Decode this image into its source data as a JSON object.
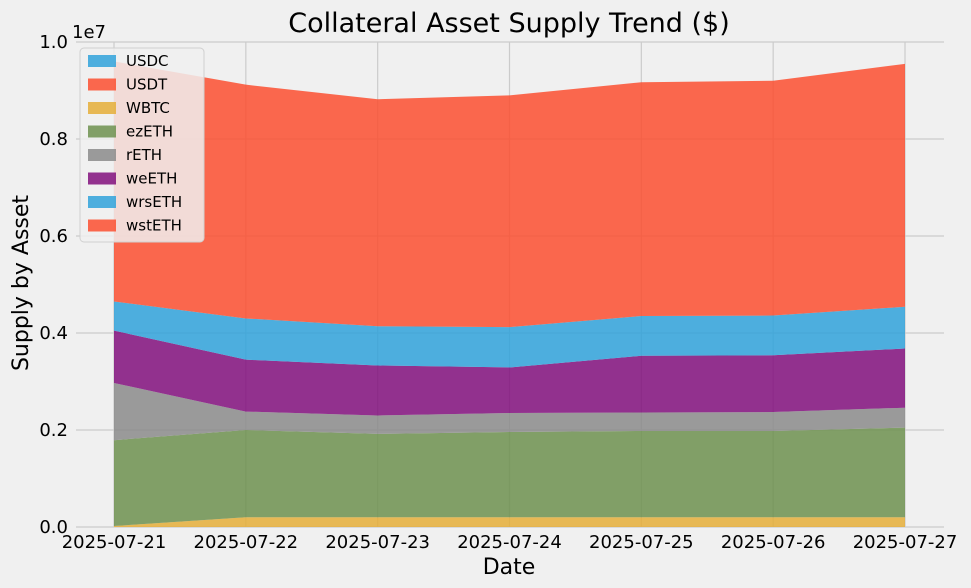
{
  "chart_data": {
    "type": "area",
    "stacked": true,
    "title": "Collateral Asset Supply Trend ($)",
    "xlabel": "Date",
    "ylabel": "Supply by Asset",
    "y_offset_label": "1e7",
    "x": [
      "2025-07-21",
      "2025-07-22",
      "2025-07-23",
      "2025-07-24",
      "2025-07-25",
      "2025-07-26",
      "2025-07-27"
    ],
    "ylim": [
      0,
      10000000
    ],
    "yticks": [
      0,
      2000000,
      4000000,
      6000000,
      8000000,
      10000000
    ],
    "ytick_labels": [
      "0.0",
      "0.2",
      "0.4",
      "0.6",
      "0.8",
      "1.0"
    ],
    "grid": true,
    "legend_position": "top-left",
    "series": [
      {
        "name": "USDC",
        "color": "#30a2da",
        "values": [
          0,
          0,
          0,
          0,
          0,
          0,
          0
        ]
      },
      {
        "name": "USDT",
        "color": "#fc4f30",
        "values": [
          0,
          0,
          0,
          0,
          0,
          0,
          0
        ]
      },
      {
        "name": "WBTC",
        "color": "#e5ae38",
        "values": [
          20000,
          200000,
          200000,
          200000,
          200000,
          200000,
          200000
        ]
      },
      {
        "name": "ezETH",
        "color": "#6d904f",
        "values": [
          1770000,
          1800000,
          1720000,
          1760000,
          1780000,
          1780000,
          1850000
        ]
      },
      {
        "name": "rETH",
        "color": "#8b8b8b",
        "values": [
          1180000,
          380000,
          380000,
          390000,
          380000,
          390000,
          410000
        ]
      },
      {
        "name": "weETH",
        "color": "#810f7c",
        "values": [
          1080000,
          1070000,
          1030000,
          940000,
          1170000,
          1170000,
          1220000
        ]
      },
      {
        "name": "wrsETH",
        "color": "#30a2da",
        "values": [
          600000,
          850000,
          810000,
          830000,
          820000,
          820000,
          860000
        ]
      },
      {
        "name": "wstETH",
        "color": "#fc4f30",
        "values": [
          4950000,
          4820000,
          4680000,
          4780000,
          4820000,
          4840000,
          5010000
        ]
      }
    ]
  }
}
